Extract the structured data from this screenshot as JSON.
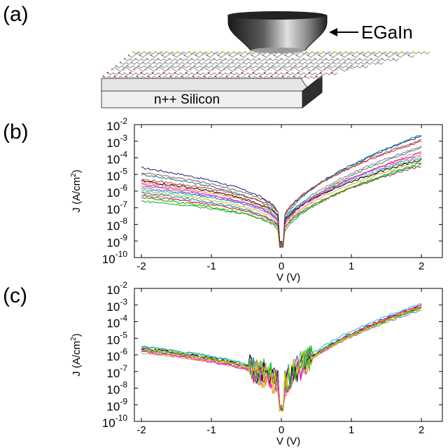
{
  "panels": {
    "a": {
      "letter": "(a)"
    },
    "b": {
      "letter": "(b)"
    },
    "c": {
      "letter": "(c)"
    }
  },
  "schematic": {
    "tip_label": "EGaIn",
    "substrate_label": "n++ Silicon",
    "colors": {
      "tip_dark": "#1a1a1a",
      "tip_light": "#d9d9d9",
      "slab_top": "#e6e6e6",
      "slab_side": "#3a3a3a",
      "lattice": "#8a8a8a",
      "lattice_red": "#c0392b",
      "lattice_yellow": "#d4d400"
    }
  },
  "chart_data": [
    {
      "type": "line",
      "panel": "b",
      "xlabel": "V (V)",
      "ylabel": "J (A/cm²)",
      "ylabel_parts": {
        "main": "J (A/cm",
        "sup": "2",
        "end": ")"
      },
      "xlim": [
        -2.1,
        2.3
      ],
      "ylim_log10": [
        -10,
        -2
      ],
      "yscale": "log",
      "x_ticks": [
        -2,
        -1,
        0,
        1,
        2
      ],
      "x_tick_labels": [
        "-2",
        "-1",
        "0",
        "1",
        "2"
      ],
      "y_ticks": [
        {
          "base": "10",
          "exp": "-2"
        },
        {
          "base": "10",
          "exp": "-3"
        },
        {
          "base": "10",
          "exp": "-4"
        },
        {
          "base": "10",
          "exp": "-5"
        },
        {
          "base": "10",
          "exp": "-6"
        },
        {
          "base": "10",
          "exp": "-7"
        },
        {
          "base": "10",
          "exp": "-8"
        },
        {
          "base": "10",
          "exp": "-9"
        },
        {
          "base": "10",
          "exp": "-10"
        }
      ],
      "series": [
        {
          "color": "#1f1f8f",
          "left": -4.6,
          "right": -2.7,
          "center": -8.2
        },
        {
          "color": "#008080",
          "left": -5.0,
          "right": -2.6,
          "center": -8.4
        },
        {
          "color": "#d62728",
          "left": -5.3,
          "right": -3.0,
          "center": -8.0
        },
        {
          "color": "#2ca02c",
          "left": -6.6,
          "right": -3.4,
          "center": -8.7
        },
        {
          "color": "#ff7f0e",
          "left": -5.5,
          "right": -3.8,
          "center": -8.3
        },
        {
          "color": "#9467bd",
          "left": -5.8,
          "right": -3.3,
          "center": -8.5
        },
        {
          "color": "#8c564b",
          "left": -4.9,
          "right": -2.9,
          "center": -8.1
        },
        {
          "color": "#e377c2",
          "left": -6.2,
          "right": -3.6,
          "center": -8.9
        },
        {
          "color": "#7f7f7f",
          "left": -5.7,
          "right": -4.0,
          "center": -8.4
        },
        {
          "color": "#bcbd22",
          "left": -6.0,
          "right": -4.2,
          "center": -8.6
        },
        {
          "color": "#17becf",
          "left": -5.9,
          "right": -3.9,
          "center": -8.2
        },
        {
          "color": "#000000",
          "left": -5.4,
          "right": -4.1,
          "center": -8.3
        },
        {
          "color": "#1f77b4",
          "left": -6.1,
          "right": -4.4,
          "center": -8.8
        },
        {
          "color": "#ff00ff",
          "left": -5.6,
          "right": -3.7,
          "center": -8.6
        },
        {
          "color": "#00aa00",
          "left": -6.4,
          "right": -4.3,
          "center": -9.0
        },
        {
          "color": "#aa5500",
          "left": -6.3,
          "right": -4.5,
          "center": -8.7
        }
      ]
    },
    {
      "type": "line",
      "panel": "c",
      "xlabel": "V (V)",
      "ylabel": "J (A/cm²)",
      "ylabel_parts": {
        "main": "J (A/cm",
        "sup": "2",
        "end": ")"
      },
      "xlim": [
        -2.1,
        2.3
      ],
      "ylim_log10": [
        -10,
        -2
      ],
      "yscale": "log",
      "x_ticks": [
        -2,
        -1,
        0,
        1,
        2
      ],
      "x_tick_labels": [
        "-2",
        "-1",
        "0",
        "1",
        "2"
      ],
      "y_ticks": [
        {
          "base": "10",
          "exp": "-2"
        },
        {
          "base": "10",
          "exp": "-3"
        },
        {
          "base": "10",
          "exp": "-4"
        },
        {
          "base": "10",
          "exp": "-5"
        },
        {
          "base": "10",
          "exp": "-6"
        },
        {
          "base": "10",
          "exp": "-7"
        },
        {
          "base": "10",
          "exp": "-8"
        },
        {
          "base": "10",
          "exp": "-9"
        },
        {
          "base": "10",
          "exp": "-10"
        }
      ],
      "series": [
        {
          "color": "#1f1f8f",
          "left": -5.6,
          "right": -3.0,
          "center": -8.4
        },
        {
          "color": "#d62728",
          "left": -5.7,
          "right": -3.1,
          "center": -8.5
        },
        {
          "color": "#2ca02c",
          "left": -5.5,
          "right": -3.2,
          "center": -8.3
        },
        {
          "color": "#ff7f0e",
          "left": -5.8,
          "right": -3.0,
          "center": -8.6
        },
        {
          "color": "#9467bd",
          "left": -5.6,
          "right": -3.3,
          "center": -8.4
        },
        {
          "color": "#e377c2",
          "left": -5.7,
          "right": -3.1,
          "center": -8.7
        },
        {
          "color": "#17becf",
          "left": -5.5,
          "right": -2.9,
          "center": -8.2
        },
        {
          "color": "#bcbd22",
          "left": -5.9,
          "right": -3.2,
          "center": -8.5
        },
        {
          "color": "#000000",
          "left": -5.6,
          "right": -3.1,
          "center": -8.4
        },
        {
          "color": "#ff00ff",
          "left": -5.8,
          "right": -3.0,
          "center": -8.6
        },
        {
          "color": "#00cc00",
          "left": -5.7,
          "right": -3.2,
          "center": -8.3
        },
        {
          "color": "#ffcc00",
          "left": -5.6,
          "right": -3.1,
          "center": -8.5
        }
      ]
    }
  ]
}
